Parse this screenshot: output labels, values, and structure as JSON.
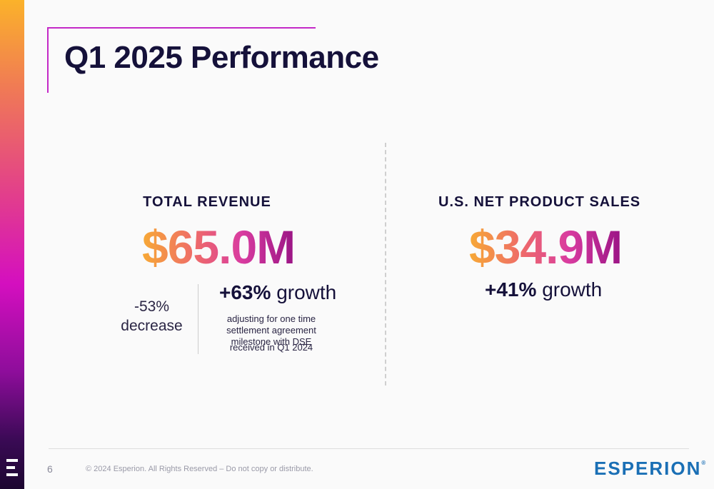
{
  "slide": {
    "title": "Q1 2025 Performance",
    "page_number": "6",
    "copyright": "© 2024 Esperion. All Rights Reserved – Do not copy or distribute.",
    "brand": "ESPERION",
    "brand_mark": "®"
  },
  "colors": {
    "title": "#15113a",
    "accent_frame": "#c429c7",
    "value_gradient": [
      "#f7a935",
      "#ee6a6a",
      "#d93ca0",
      "#9a1485"
    ],
    "brand": "#1a6fb5"
  },
  "total_revenue": {
    "heading": "TOTAL REVENUE",
    "value": "$65.0M",
    "decrease_value": "-53%",
    "decrease_label": "decrease",
    "growth_value": "+63%",
    "growth_label": "growth",
    "note_line1": "adjusting for one time settlement agreement milestone with DSE",
    "note_line2": "received in Q1 2024"
  },
  "us_net_product_sales": {
    "heading": "U.S. NET PRODUCT SALES",
    "value": "$34.9M",
    "growth_value": "+41%",
    "growth_label": "growth"
  }
}
